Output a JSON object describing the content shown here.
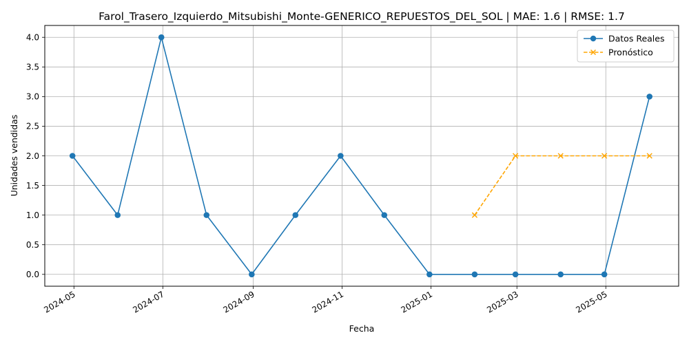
{
  "chart_data": {
    "type": "line",
    "title": "Farol_Trasero_Izquierdo_Mitsubishi_Monte-GENERICO_REPUESTOS_DEL_SOL | MAE: 1.6 | RMSE: 1.7",
    "xlabel": "Fecha",
    "ylabel": "Unidades vendidas",
    "x_axis_type": "date",
    "xlim": [
      "2024-04-11",
      "2025-06-20"
    ],
    "ylim": [
      -0.2,
      4.2
    ],
    "x_ticks": [
      "2024-05-01",
      "2024-07-01",
      "2024-09-01",
      "2024-11-01",
      "2025-01-01",
      "2025-03-01",
      "2025-05-01"
    ],
    "x_tick_labels": [
      "2024-05",
      "2024-07",
      "2024-09",
      "2024-11",
      "2025-01",
      "2025-03",
      "2025-05"
    ],
    "y_ticks": [
      0,
      0.5,
      1,
      1.5,
      2,
      2.5,
      3,
      3.5,
      4
    ],
    "y_tick_labels": [
      "0.0",
      "0.5",
      "1.0",
      "1.5",
      "2.0",
      "2.5",
      "3.0",
      "3.5",
      "4.0"
    ],
    "grid": true,
    "legend_position": "top-right",
    "series": [
      {
        "name": "Datos Reales",
        "color": "#1f77b4",
        "marker": "circle",
        "line_style": "solid",
        "x": [
          "2024-04-30",
          "2024-05-31",
          "2024-06-30",
          "2024-07-31",
          "2024-08-31",
          "2024-09-30",
          "2024-10-31",
          "2024-11-30",
          "2024-12-31",
          "2025-01-31",
          "2025-02-28",
          "2025-03-31",
          "2025-04-30",
          "2025-05-31"
        ],
        "values": [
          2,
          1,
          4,
          1,
          0,
          1,
          2,
          1,
          0,
          0,
          0,
          0,
          0,
          3
        ]
      },
      {
        "name": "Pronóstico",
        "color": "#ffa500",
        "marker": "x",
        "line_style": "dashed",
        "x": [
          "2025-01-31",
          "2025-02-28",
          "2025-03-31",
          "2025-04-30",
          "2025-05-31"
        ],
        "values": [
          1,
          2,
          2,
          2,
          2
        ]
      }
    ]
  }
}
